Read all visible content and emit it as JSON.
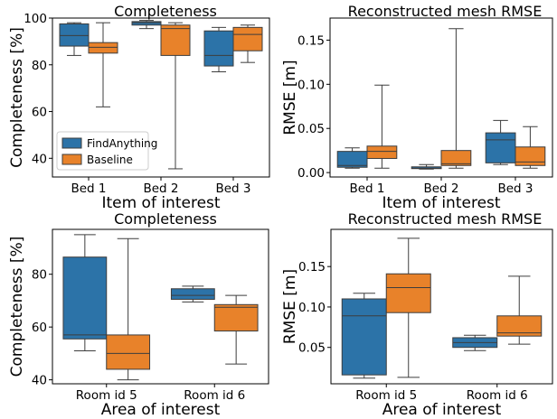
{
  "colors": {
    "findanything": "#2c73a8",
    "baseline": "#e8822a"
  },
  "chart_data": [
    {
      "type": "box",
      "title": "Completeness",
      "xlabel": "Item of interest",
      "ylabel": "Completeness [%]",
      "categories": [
        "Bed 1",
        "Bed 2",
        "Bed 3"
      ],
      "ylim": [
        32,
        100
      ],
      "yticks": [
        40,
        60,
        80,
        100
      ],
      "ytick_labels": [
        "40",
        "60",
        "80",
        "100"
      ],
      "legend": {
        "position": "lower-left",
        "entries": [
          "FindAnything",
          "Baseline"
        ]
      },
      "series": [
        {
          "name": "FindAnything",
          "boxes": [
            {
              "whislo": 84,
              "q1": 88,
              "med": 92.5,
              "q3": 97.5,
              "whishi": 98
            },
            {
              "whislo": 95.5,
              "q1": 97,
              "med": 98,
              "q3": 98.5,
              "whishi": 99
            },
            {
              "whislo": 77,
              "q1": 79.5,
              "med": 84,
              "q3": 94.5,
              "whishi": 96
            }
          ]
        },
        {
          "name": "Baseline",
          "boxes": [
            {
              "whislo": 62,
              "q1": 85,
              "med": 87.5,
              "q3": 89.5,
              "whishi": 98
            },
            {
              "whislo": 35.5,
              "q1": 84,
              "med": 95.5,
              "q3": 97,
              "whishi": 98
            },
            {
              "whislo": 81,
              "q1": 86,
              "med": 93,
              "q3": 96,
              "whishi": 97
            }
          ]
        }
      ]
    },
    {
      "type": "box",
      "title": "Reconstructed mesh RMSE",
      "xlabel": "Item of interest",
      "ylabel": "RMSE [m]",
      "categories": [
        "Bed 1",
        "Bed 2",
        "Bed 3"
      ],
      "ylim": [
        -0.005,
        0.175
      ],
      "yticks": [
        0.0,
        0.05,
        0.1,
        0.15
      ],
      "ytick_labels": [
        "0.00",
        "0.05",
        "0.10",
        "0.15"
      ],
      "series": [
        {
          "name": "FindAnything",
          "boxes": [
            {
              "whislo": 0.005,
              "q1": 0.006,
              "med": 0.008,
              "q3": 0.024,
              "whishi": 0.028
            },
            {
              "whislo": 0.004,
              "q1": 0.0045,
              "med": 0.005,
              "q3": 0.0065,
              "whishi": 0.009
            },
            {
              "whislo": 0.009,
              "q1": 0.011,
              "med": 0.037,
              "q3": 0.045,
              "whishi": 0.059
            }
          ]
        },
        {
          "name": "Baseline",
          "boxes": [
            {
              "whislo": 0.005,
              "q1": 0.016,
              "med": 0.024,
              "q3": 0.03,
              "whishi": 0.099
            },
            {
              "whislo": 0.005,
              "q1": 0.008,
              "med": 0.01,
              "q3": 0.025,
              "whishi": 0.163
            },
            {
              "whislo": 0.005,
              "q1": 0.008,
              "med": 0.012,
              "q3": 0.029,
              "whishi": 0.052
            }
          ]
        }
      ]
    },
    {
      "type": "box",
      "title": "Completeness",
      "xlabel": "Area of interest",
      "ylabel": "Completeness [%]",
      "categories": [
        "Room id 5",
        "Room id 6"
      ],
      "ylim": [
        38.5,
        97
      ],
      "yticks": [
        40,
        60,
        80
      ],
      "ytick_labels": [
        "40",
        "60",
        "80"
      ],
      "series": [
        {
          "name": "FindAnything",
          "boxes": [
            {
              "whislo": 51,
              "q1": 55.5,
              "med": 57,
              "q3": 86.5,
              "whishi": 95
            },
            {
              "whislo": 69.5,
              "q1": 70.5,
              "med": 72,
              "q3": 74.5,
              "whishi": 75.5
            }
          ]
        },
        {
          "name": "Baseline",
          "boxes": [
            {
              "whislo": 40,
              "q1": 44,
              "med": 50,
              "q3": 57,
              "whishi": 93.5
            },
            {
              "whislo": 46,
              "q1": 58.5,
              "med": 67.5,
              "q3": 68.5,
              "whishi": 72
            }
          ]
        }
      ]
    },
    {
      "type": "box",
      "title": "Reconstructed mesh RMSE",
      "xlabel": "Area of interest",
      "ylabel": "RMSE [m]",
      "categories": [
        "Room id 5",
        "Room id 6"
      ],
      "ylim": [
        0.005,
        0.196
      ],
      "yticks": [
        0.05,
        0.1,
        0.15
      ],
      "ytick_labels": [
        "0.05",
        "0.10",
        "0.15"
      ],
      "series": [
        {
          "name": "FindAnything",
          "boxes": [
            {
              "whislo": 0.012,
              "q1": 0.016,
              "med": 0.089,
              "q3": 0.11,
              "whishi": 0.117
            },
            {
              "whislo": 0.046,
              "q1": 0.05,
              "med": 0.056,
              "q3": 0.062,
              "whishi": 0.065
            }
          ]
        },
        {
          "name": "Baseline",
          "boxes": [
            {
              "whislo": 0.013,
              "q1": 0.093,
              "med": 0.124,
              "q3": 0.141,
              "whishi": 0.185
            },
            {
              "whislo": 0.054,
              "q1": 0.064,
              "med": 0.068,
              "q3": 0.089,
              "whishi": 0.138
            }
          ]
        }
      ]
    }
  ]
}
